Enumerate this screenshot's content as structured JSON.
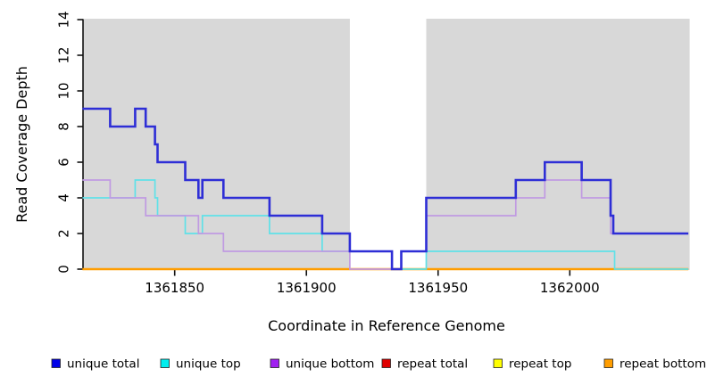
{
  "chart_data": {
    "type": "line",
    "subtype": "step-coverage-plot",
    "title": "",
    "xlabel": "Coordinate in Reference Genome",
    "ylabel": "Read Coverage Depth",
    "xlim": [
      1361815,
      1362045
    ],
    "ylim": [
      0,
      14
    ],
    "x_ticks": [
      1361850,
      1361900,
      1361950,
      1362000
    ],
    "y_ticks": [
      0,
      2,
      4,
      6,
      8,
      10,
      12,
      14
    ],
    "grid": false,
    "legend_position": "bottom",
    "background_color": "#ffffff",
    "shaded_regions": [
      {
        "from": 1361815,
        "to": 1361916.5,
        "color": "#d8d8d8"
      },
      {
        "from": 1361945.5,
        "to": 1362045.5,
        "color": "#d8d8d8"
      }
    ],
    "series": [
      {
        "name": "repeat total",
        "color": "#dd0000",
        "points": [
          [
            1361815,
            0
          ],
          [
            1362045,
            0
          ]
        ]
      },
      {
        "name": "repeat top",
        "color": "#eeee00",
        "points": [
          [
            1361815,
            0
          ],
          [
            1362045,
            0
          ]
        ]
      },
      {
        "name": "repeat bottom",
        "color": "#ff9d00",
        "points": [
          [
            1361815,
            0
          ],
          [
            1362045,
            0
          ]
        ]
      },
      {
        "name": "unique top",
        "color": "#5fe1e8",
        "points": [
          [
            1361815,
            4
          ],
          [
            1361835,
            5
          ],
          [
            1361842.5,
            4
          ],
          [
            1361843.5,
            3
          ],
          [
            1361854,
            2
          ],
          [
            1361860.5,
            3
          ],
          [
            1361886,
            2
          ],
          [
            1361906,
            1
          ],
          [
            1361932.5,
            0
          ],
          [
            1361945.5,
            1
          ],
          [
            1362017,
            0
          ],
          [
            1362045,
            0
          ]
        ]
      },
      {
        "name": "unique bottom",
        "color": "#c09ae2",
        "points": [
          [
            1361815,
            5
          ],
          [
            1361825.5,
            4
          ],
          [
            1361839,
            3
          ],
          [
            1361859,
            2
          ],
          [
            1361868.5,
            1
          ],
          [
            1361916.5,
            0
          ],
          [
            1361936,
            1
          ],
          [
            1361945.5,
            3
          ],
          [
            1361979.5,
            4
          ],
          [
            1361990.5,
            5
          ],
          [
            1362004.5,
            4
          ],
          [
            1362015.5,
            2
          ],
          [
            1362045,
            2
          ]
        ]
      },
      {
        "name": "unique total",
        "color": "#2e2ed6",
        "points": [
          [
            1361815,
            9
          ],
          [
            1361825.5,
            8
          ],
          [
            1361835,
            9
          ],
          [
            1361839,
            8
          ],
          [
            1361842.5,
            7
          ],
          [
            1361843.5,
            6
          ],
          [
            1361854,
            5
          ],
          [
            1361859,
            4
          ],
          [
            1361860.5,
            5
          ],
          [
            1361868.5,
            4
          ],
          [
            1361886,
            3
          ],
          [
            1361906,
            2
          ],
          [
            1361916.5,
            1
          ],
          [
            1361932.5,
            0
          ],
          [
            1361936,
            1
          ],
          [
            1361945.5,
            4
          ],
          [
            1361979.5,
            5
          ],
          [
            1361990.5,
            6
          ],
          [
            1362004.5,
            5
          ],
          [
            1362015.5,
            3
          ],
          [
            1362016.5,
            2
          ],
          [
            1362045,
            2
          ]
        ]
      }
    ],
    "legend": [
      {
        "label": "unique total",
        "swatch_color": "#0000e8"
      },
      {
        "label": "unique top",
        "swatch_color": "#00eeee"
      },
      {
        "label": "unique bottom",
        "swatch_color": "#a020f0"
      },
      {
        "label": "repeat total",
        "swatch_color": "#e00000"
      },
      {
        "label": "repeat top",
        "swatch_color": "#ffff00"
      },
      {
        "label": "repeat bottom",
        "swatch_color": "#ff9d00"
      }
    ]
  }
}
